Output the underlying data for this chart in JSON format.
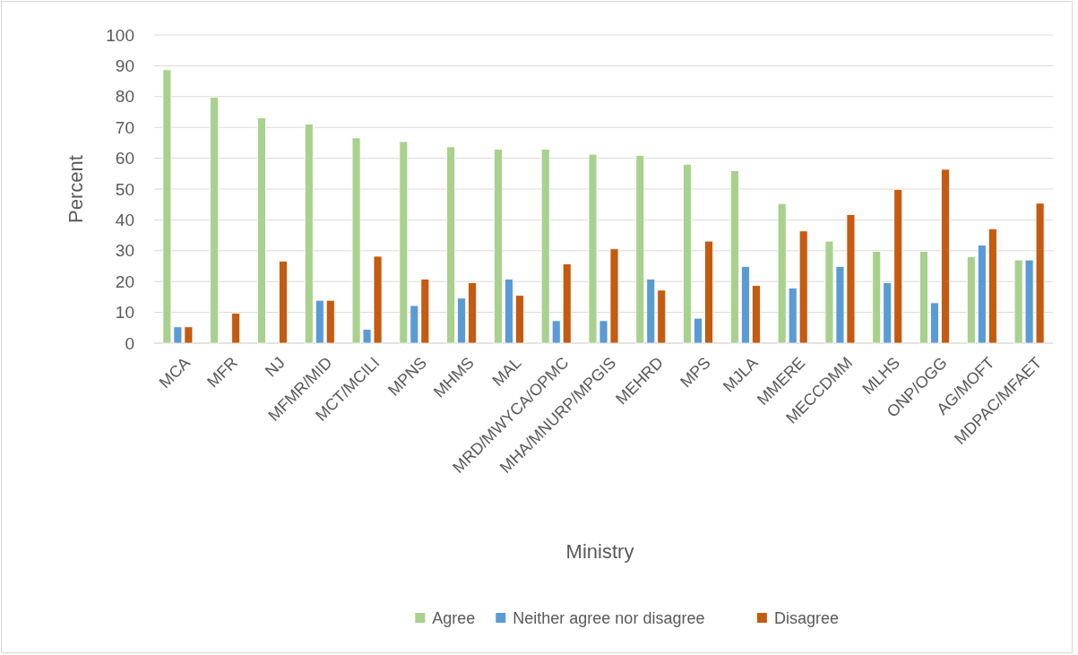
{
  "chart_data": {
    "type": "bar",
    "xlabel": "Ministry",
    "ylabel": "Percent",
    "categories": [
      "MCA",
      "MFR",
      "NJ",
      "MFMR/MID",
      "MCT/MCILI",
      "MPNS",
      "MHMS",
      "MAL",
      "MRD/MWYCA/OPMC",
      "MHA/MNURP/MPGIS",
      "MEHRD",
      "MPS",
      "MJLA",
      "MMERE",
      "MECCDMM",
      "MLHS",
      "ONP/OGG",
      "AG/MOFT",
      "MDPAC/MFAET"
    ],
    "series": [
      {
        "name": "Agree",
        "color": "#a9d18e",
        "values": [
          88.7,
          79.8,
          73.1,
          71.1,
          66.6,
          65.4,
          63.7,
          62.9,
          62.9,
          61.3,
          60.9,
          58.0,
          56.0,
          45.3,
          33.1,
          29.8,
          29.8,
          28.1,
          27.0
        ]
      },
      {
        "name": "Neither agree nor disagree",
        "color": "#5b9bd5",
        "values": [
          5.3,
          null,
          null,
          13.9,
          4.5,
          12.2,
          14.6,
          20.8,
          7.3,
          7.3,
          20.8,
          8.1,
          24.9,
          17.9,
          24.9,
          19.6,
          13.1,
          31.8,
          27.0
        ]
      },
      {
        "name": "Disagree",
        "color": "#c55a11",
        "values": [
          5.3,
          9.7,
          26.6,
          13.9,
          28.2,
          20.8,
          19.6,
          15.5,
          25.7,
          30.6,
          17.2,
          33.1,
          18.7,
          36.4,
          41.7,
          49.9,
          56.4,
          37.1,
          45.4
        ]
      }
    ],
    "ylim": [
      0,
      100
    ],
    "yticks": [
      0,
      10,
      20,
      30,
      40,
      50,
      60,
      70,
      80,
      90,
      100
    ],
    "grid": "y",
    "legend": "bottom"
  }
}
